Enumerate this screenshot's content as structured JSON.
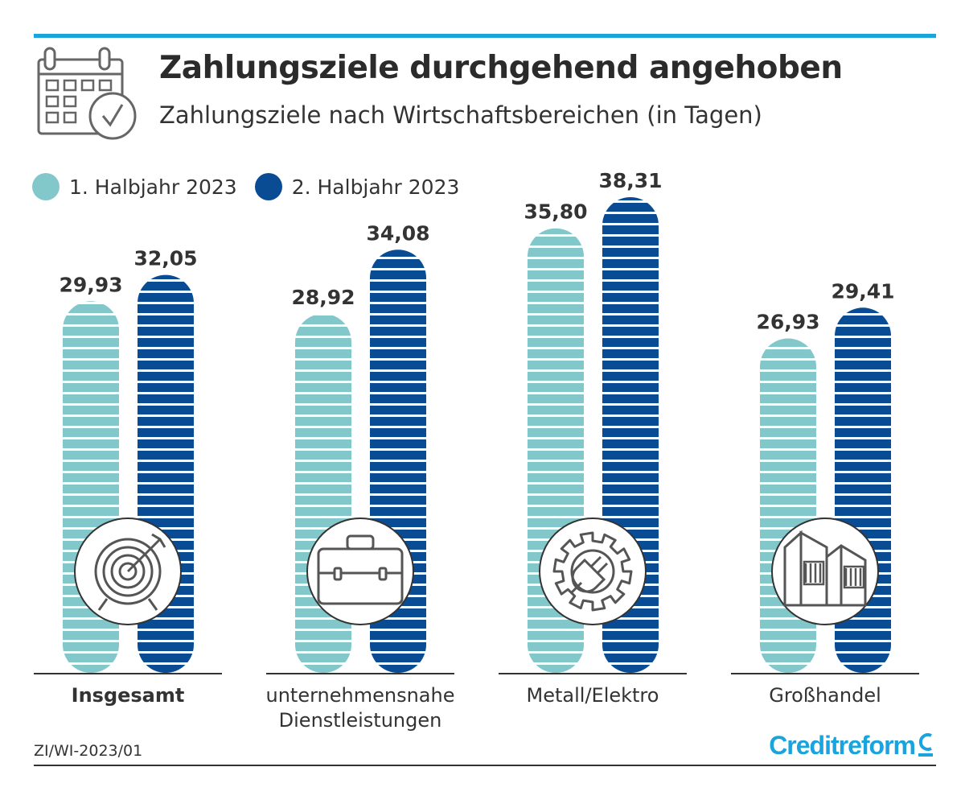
{
  "header": {
    "title": "Zahlungsziele durchgehend angehoben",
    "subtitle": "Zahlungsziele nach Wirtschaftsbereichen (in Tagen)",
    "icon": "calendar-check-icon"
  },
  "legend": [
    {
      "label": "1. Halbjahr 2023",
      "color": "#82c8ca"
    },
    {
      "label": "2. Halbjahr 2023",
      "color": "#0a4c94"
    }
  ],
  "chart_data": {
    "type": "bar",
    "categories": [
      {
        "label": "Insgesamt",
        "bold": true,
        "icon": "target-icon"
      },
      {
        "label": "unternehmensnahe\nDienstleistungen",
        "bold": false,
        "icon": "briefcase-icon"
      },
      {
        "label": "Metall/Elektro",
        "bold": false,
        "icon": "gear-plug-icon"
      },
      {
        "label": "Großhandel",
        "bold": false,
        "icon": "building-icon"
      }
    ],
    "series": [
      {
        "name": "1. Halbjahr 2023",
        "color": "#82c8ca",
        "values": [
          29.93,
          28.92,
          35.8,
          26.93
        ],
        "labels": [
          "29,93",
          "28,92",
          "35,80",
          "26,93"
        ]
      },
      {
        "name": "2. Halbjahr 2023",
        "color": "#0a4c94",
        "values": [
          32.05,
          34.08,
          38.31,
          29.41
        ],
        "labels": [
          "32,05",
          "34,08",
          "38,31",
          "29,41"
        ]
      }
    ],
    "ylim": [
      0,
      38.31
    ],
    "grid": false,
    "legend_position": "top-left"
  },
  "footer": {
    "code": "ZI/WI-2023/01",
    "brand": "Creditreform"
  }
}
